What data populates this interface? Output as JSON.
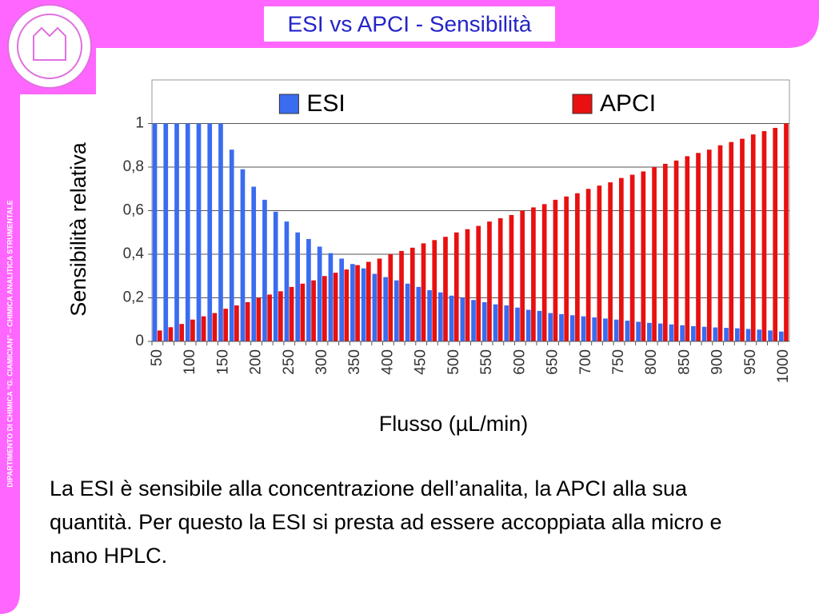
{
  "slide_title": "ESI vs APCI - Sensibilità",
  "sidebar": "DIPARTIMENTO DI CHIMICA “G. CIAMICIAN” – CHIMICA ANALITICA STRUMENTALE",
  "caption": "La ESI è sensibile alla concentrazione dell’analita, la APCI alla sua quantità. Per questo la ESI si presta ad essere accoppiata alla micro e nano HPLC.",
  "chart_data": {
    "type": "bar",
    "x_label": "Flusso (µL/min)",
    "y_label": "Sensibilità relativa",
    "categories": [
      "50",
      null,
      null,
      "100",
      null,
      null,
      "150",
      null,
      null,
      "200",
      null,
      null,
      "250",
      null,
      null,
      "300",
      null,
      null,
      "350",
      null,
      null,
      "400",
      null,
      null,
      "450",
      null,
      null,
      "500",
      null,
      null,
      "550",
      null,
      null,
      "600",
      null,
      null,
      "650",
      null,
      null,
      "700",
      null,
      null,
      "750",
      null,
      null,
      "800",
      null,
      null,
      "850",
      null,
      null,
      "900",
      null,
      null,
      "950",
      null,
      null,
      "1000"
    ],
    "series": [
      {
        "name": "ESI",
        "color": "#3a6cf0",
        "values": [
          1,
          1,
          1,
          1,
          1,
          1,
          1,
          0.88,
          0.79,
          0.71,
          0.65,
          0.595,
          0.55,
          0.5,
          0.47,
          0.435,
          0.405,
          0.38,
          0.355,
          0.335,
          0.31,
          0.295,
          0.28,
          0.265,
          0.25,
          0.235,
          0.225,
          0.21,
          0.2,
          0.19,
          0.18,
          0.17,
          0.165,
          0.155,
          0.145,
          0.14,
          0.13,
          0.125,
          0.12,
          0.115,
          0.11,
          0.105,
          0.1,
          0.095,
          0.09,
          0.085,
          0.082,
          0.078,
          0.074,
          0.07,
          0.067,
          0.064,
          0.062,
          0.06,
          0.057,
          0.054,
          0.05,
          0.045
        ]
      },
      {
        "name": "APCI",
        "color": "#e81010",
        "values": [
          0.05,
          0.065,
          0.08,
          0.1,
          0.115,
          0.13,
          0.15,
          0.165,
          0.18,
          0.2,
          0.215,
          0.23,
          0.25,
          0.265,
          0.28,
          0.3,
          0.315,
          0.33,
          0.35,
          0.365,
          0.38,
          0.4,
          0.415,
          0.43,
          0.45,
          0.465,
          0.48,
          0.5,
          0.515,
          0.53,
          0.55,
          0.565,
          0.58,
          0.6,
          0.615,
          0.63,
          0.65,
          0.665,
          0.68,
          0.7,
          0.715,
          0.73,
          0.75,
          0.765,
          0.78,
          0.8,
          0.815,
          0.83,
          0.85,
          0.865,
          0.88,
          0.9,
          0.915,
          0.93,
          0.95,
          0.965,
          0.98,
          1
        ]
      }
    ],
    "ylim": [
      0,
      1.2
    ],
    "yticks": [
      0,
      {
        "value": 0.2,
        "label": "0,2"
      },
      {
        "value": 0.4,
        "label": "0,4"
      },
      {
        "value": 0.6,
        "label": "0,6"
      },
      {
        "value": 0.8,
        "label": "0,8"
      },
      1
    ],
    "grid": true,
    "legend": "top"
  }
}
